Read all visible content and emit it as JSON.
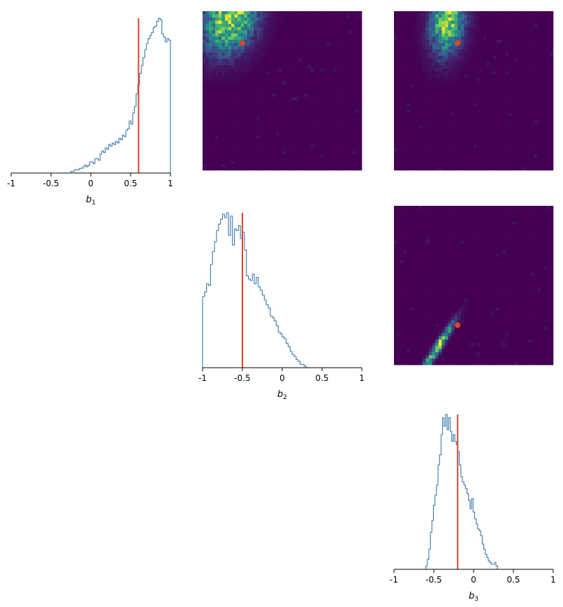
{
  "chart_data": {
    "type": "corner",
    "truth": {
      "b1": 0.6,
      "b2": -0.5,
      "b3": -0.2
    },
    "colors": {
      "histogram": "#3a78b0",
      "truth": "#e0432b",
      "colormap": [
        "#440154",
        "#3b528b",
        "#21918c",
        "#5ec962",
        "#fde725"
      ]
    },
    "axes": [
      {
        "id": "b1",
        "label": "b",
        "sub": "1",
        "xlim": [
          -1,
          1
        ],
        "ticks": [
          -1,
          -0.5,
          0,
          0.5,
          1
        ],
        "tick_labels": [
          "-1",
          "-0.5",
          "0",
          "0.5",
          "1"
        ]
      },
      {
        "id": "b2",
        "label": "b",
        "sub": "2",
        "xlim": [
          -1,
          1
        ],
        "ticks": [
          -1,
          -0.5,
          0,
          0.5,
          1
        ],
        "tick_labels": [
          "-1",
          "-0.5",
          "0",
          "0.5",
          "1"
        ]
      },
      {
        "id": "b3",
        "label": "b",
        "sub": "3",
        "xlim": [
          -1,
          1
        ],
        "ticks": [
          -1,
          -0.5,
          0,
          0.5,
          1
        ],
        "tick_labels": [
          "-1",
          "-0.5",
          "0",
          "0.5",
          "1"
        ]
      }
    ],
    "histograms": [
      {
        "param": "b1",
        "range": [
          -0.25,
          1.0
        ],
        "values": [
          0.01,
          0.01,
          0.02,
          0.02,
          0.02,
          0.03,
          0.03,
          0.04,
          0.05,
          0.04,
          0.05,
          0.07,
          0.07,
          0.06,
          0.09,
          0.09,
          0.08,
          0.12,
          0.14,
          0.13,
          0.16,
          0.15,
          0.18,
          0.17,
          0.19,
          0.18,
          0.2,
          0.19,
          0.22,
          0.21,
          0.24,
          0.23,
          0.27,
          0.28,
          0.33,
          0.31,
          0.38,
          0.42,
          0.5,
          0.56,
          0.63,
          0.68,
          0.73,
          0.78,
          0.82,
          0.85,
          0.87,
          0.89,
          0.92,
          0.93,
          0.96,
          0.98,
          0.97,
          0.88,
          0.86,
          0.83,
          0.85,
          0.84
        ]
      },
      {
        "param": "b2",
        "range": [
          -1.0,
          0.3
        ],
        "values": [
          0.44,
          0.47,
          0.52,
          0.51,
          0.64,
          0.72,
          0.78,
          0.85,
          0.89,
          0.92,
          0.95,
          0.93,
          0.96,
          0.82,
          0.94,
          0.76,
          0.86,
          0.85,
          0.88,
          0.8,
          0.84,
          0.73,
          0.57,
          0.55,
          0.54,
          0.58,
          0.52,
          0.56,
          0.5,
          0.48,
          0.45,
          0.42,
          0.39,
          0.37,
          0.32,
          0.31,
          0.29,
          0.26,
          0.22,
          0.21,
          0.19,
          0.18,
          0.15,
          0.13,
          0.1,
          0.08,
          0.07,
          0.05,
          0.04,
          0.02,
          0.02,
          0.01
        ]
      },
      {
        "param": "b3",
        "range": [
          -0.6,
          0.3
        ],
        "values": [
          0.02,
          0.06,
          0.12,
          0.22,
          0.29,
          0.38,
          0.44,
          0.5,
          0.62,
          0.68,
          0.8,
          0.9,
          0.85,
          0.92,
          0.83,
          0.9,
          0.82,
          0.76,
          0.8,
          0.76,
          0.74,
          0.7,
          0.62,
          0.55,
          0.52,
          0.5,
          0.48,
          0.45,
          0.41,
          0.36,
          0.42,
          0.34,
          0.3,
          0.27,
          0.24,
          0.23,
          0.2,
          0.15,
          0.12,
          0.09,
          0.07,
          0.05,
          0.04,
          0.03,
          0.03,
          0.04,
          0.02
        ]
      }
    ],
    "density_2d": [
      {
        "x": "b2",
        "y": "b1",
        "xlim": [
          -1,
          1
        ],
        "ylim": [
          -1,
          1
        ],
        "cx": -0.65,
        "cy": 0.9,
        "sx": 0.22,
        "sy": 0.28,
        "rho": 0.25
      },
      {
        "x": "b3",
        "y": "b1",
        "xlim": [
          -1,
          1
        ],
        "ylim": [
          -1,
          1
        ],
        "cx": -0.32,
        "cy": 0.9,
        "sx": 0.14,
        "sy": 0.28,
        "rho": 0.2
      },
      {
        "x": "b3",
        "y": "b2",
        "xlim": [
          -1,
          1
        ],
        "ylim": [
          -1,
          1
        ],
        "cx": -0.45,
        "cy": -0.78,
        "sx": 0.13,
        "sy": 0.2,
        "rho": 0.96
      }
    ]
  }
}
